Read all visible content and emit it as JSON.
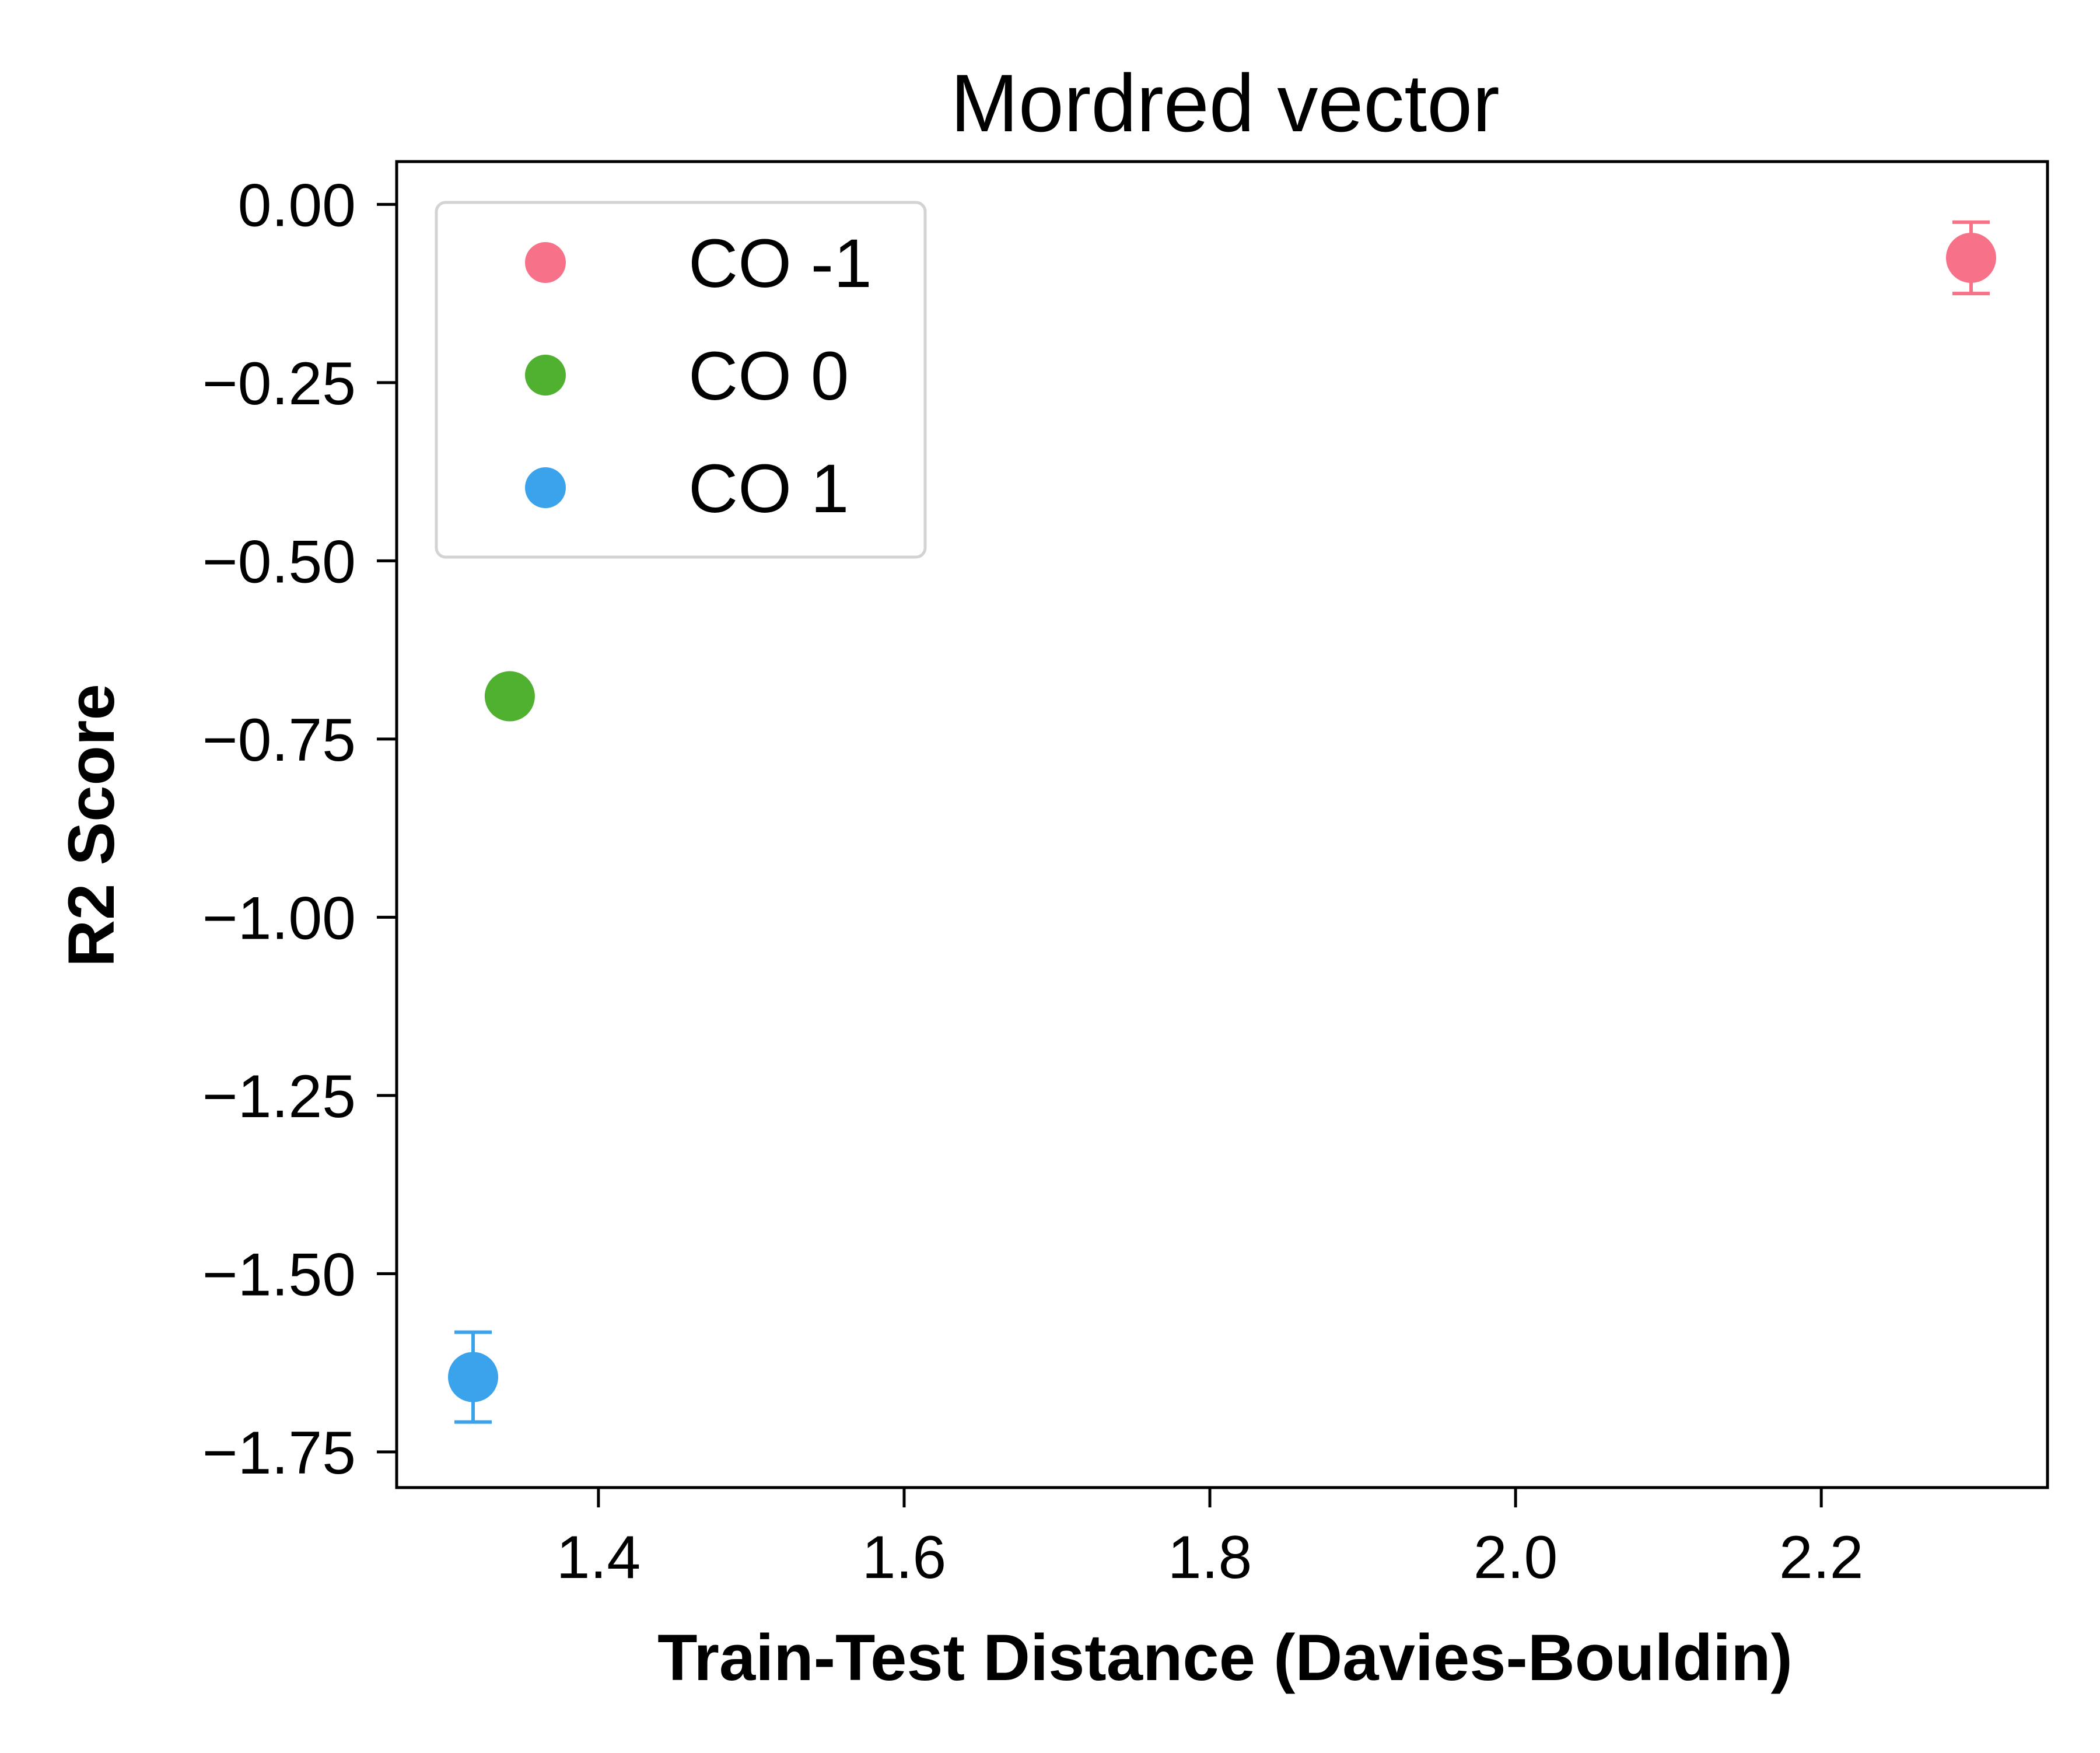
{
  "chart_data": {
    "type": "scatter",
    "title": "Mordred vector",
    "xlabel": "Train-Test Distance (Davies-Bouldin)",
    "ylabel": "R2 Score",
    "xlim": [
      1.268,
      2.348
    ],
    "ylim": [
      -1.8,
      0.06
    ],
    "x_ticks": [
      {
        "value": 1.4,
        "label": "1.4"
      },
      {
        "value": 1.6,
        "label": "1.6"
      },
      {
        "value": 1.8,
        "label": "1.8"
      },
      {
        "value": 2.0,
        "label": "2.0"
      },
      {
        "value": 2.2,
        "label": "2.2"
      }
    ],
    "y_ticks": [
      {
        "value": 0.0,
        "label": "0.00"
      },
      {
        "value": -0.25,
        "label": "−0.25"
      },
      {
        "value": -0.5,
        "label": "−0.50"
      },
      {
        "value": -0.75,
        "label": "−0.75"
      },
      {
        "value": -1.0,
        "label": "−1.00"
      },
      {
        "value": -1.25,
        "label": "−1.25"
      },
      {
        "value": -1.5,
        "label": "−1.50"
      },
      {
        "value": -1.75,
        "label": "−1.75"
      }
    ],
    "grid": false,
    "legend_position": "top-left",
    "series": [
      {
        "name": "CO -1",
        "color": "#f77189",
        "x": 2.298,
        "y": -0.075,
        "yerr": 0.05
      },
      {
        "name": "CO 0",
        "color": "#50b131",
        "x": 1.342,
        "y": -0.69,
        "yerr": 0.01
      },
      {
        "name": "CO 1",
        "color": "#3ba3ec",
        "x": 1.318,
        "y": -1.645,
        "yerr": 0.063
      }
    ]
  }
}
